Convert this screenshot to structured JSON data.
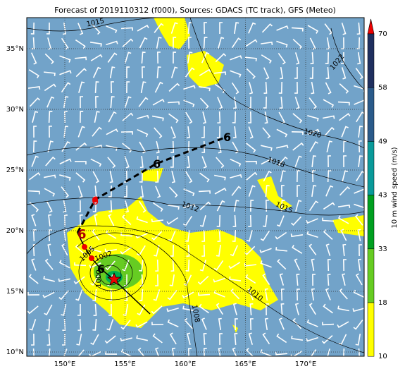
{
  "title": "Forecast of 2019110312 (f000), Sources: GDACS (TC track), GFS (Meteo)",
  "lat_labels": [
    "35°N",
    "30°N",
    "25°N",
    "20°N",
    "15°N",
    "10°N"
  ],
  "lon_labels": [
    "150°E",
    "155°E",
    "160°E",
    "165°E",
    "170°E"
  ],
  "colorbar": {
    "label": "10 m wind speed (m/s)",
    "ticks": [
      "70",
      "58",
      "49",
      "43",
      "33",
      "18",
      "10"
    ]
  },
  "isobar_labels": [
    "1015",
    "1022",
    "1020",
    "1018",
    "1012",
    "1015",
    "1010",
    "1008",
    "1005",
    "1002",
    "1000"
  ]
}
